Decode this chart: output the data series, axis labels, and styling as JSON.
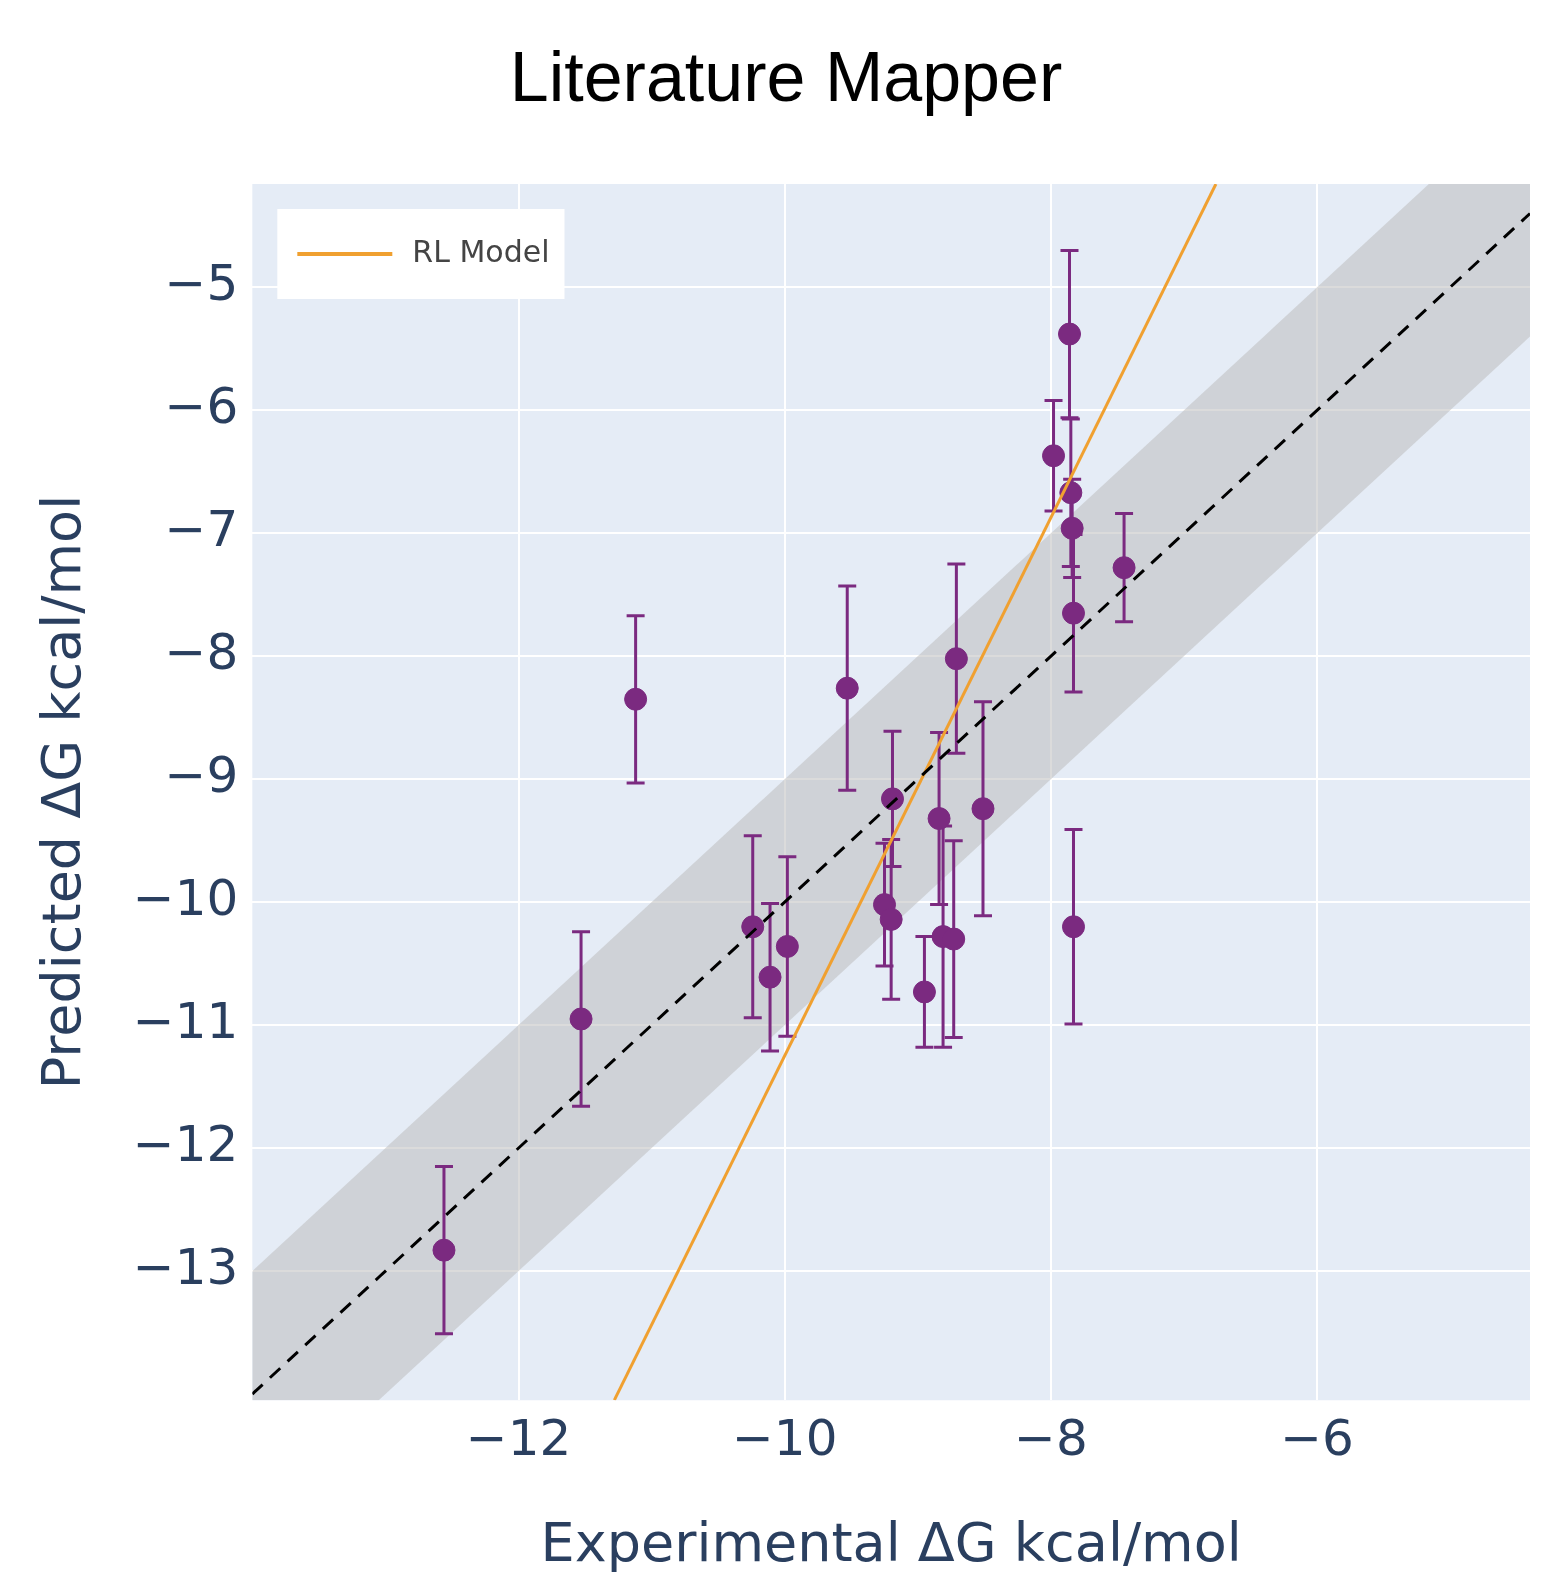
{
  "chart_data": {
    "type": "scatter",
    "title": "Literature Mapper",
    "xlabel": "Experimental ΔG kcal/mol",
    "ylabel": "Predicted ΔG kcal/mol",
    "xlim": [
      -14,
      -4.4
    ],
    "ylim": [
      -14.05,
      -4.16
    ],
    "xticks": [
      {
        "value": -12,
        "label": "−12"
      },
      {
        "value": -10,
        "label": "−10"
      },
      {
        "value": -8,
        "label": "−8"
      },
      {
        "value": -6,
        "label": "−6"
      }
    ],
    "yticks": [
      {
        "value": -13,
        "label": "−13"
      },
      {
        "value": -12,
        "label": "−12"
      },
      {
        "value": -11,
        "label": "−11"
      },
      {
        "value": -10,
        "label": "−10"
      },
      {
        "value": -9,
        "label": "−9"
      },
      {
        "value": -8,
        "label": "−8"
      },
      {
        "value": -7,
        "label": "−7"
      },
      {
        "value": -6,
        "label": "−6"
      },
      {
        "value": -5,
        "label": "−5"
      }
    ],
    "grid": true,
    "legend": "top left",
    "series": [
      {
        "type": "line",
        "color": "#000000",
        "line_style": "dashed",
        "x": [
          -14,
          -13.05,
          -5.16,
          -4.4
        ],
        "values": [
          -14,
          -13.05,
          -5.16,
          -4.4
        ],
        "lower": [
          -14.05,
          -14.05,
          -6.16,
          -5.4
        ],
        "upper": [
          -13,
          -12.05,
          -4.16,
          -4.16
        ]
      },
      {
        "type": "line",
        "name": "RL Model",
        "color": "#f0a030",
        "line_style": "solid",
        "x": [
          -11.28,
          -6.76
        ],
        "values": [
          -14.05,
          -4.16
        ]
      },
      {
        "color": "#7b2a80",
        "marker": "circle",
        "x": [
          -12.56,
          -11.53,
          -11.12,
          -10.24,
          -10.11,
          -9.98,
          -9.53,
          -9.25,
          -9.2,
          -9.19,
          -8.95,
          -8.84,
          -8.81,
          -8.73,
          -8.71,
          -8.51,
          -7.98,
          -7.86,
          -7.85,
          -7.84,
          -7.83,
          -7.83,
          -7.45
        ],
        "values": [
          -12.83,
          -10.95,
          -8.35,
          -10.2,
          -10.61,
          -10.36,
          -8.26,
          -10.02,
          -10.14,
          -9.16,
          -10.73,
          -9.32,
          -10.28,
          -10.3,
          -8.02,
          -9.24,
          -6.37,
          -5.38,
          -6.67,
          -6.96,
          -7.65,
          -10.2,
          -7.28
        ],
        "errors": [
          0.68,
          0.71,
          0.68,
          0.74,
          0.6,
          0.73,
          0.83,
          0.5,
          0.65,
          0.55,
          0.45,
          0.7,
          0.9,
          0.8,
          0.77,
          0.87,
          0.45,
          0.68,
          0.6,
          0.4,
          0.64,
          0.79,
          0.44
        ]
      }
    ]
  }
}
